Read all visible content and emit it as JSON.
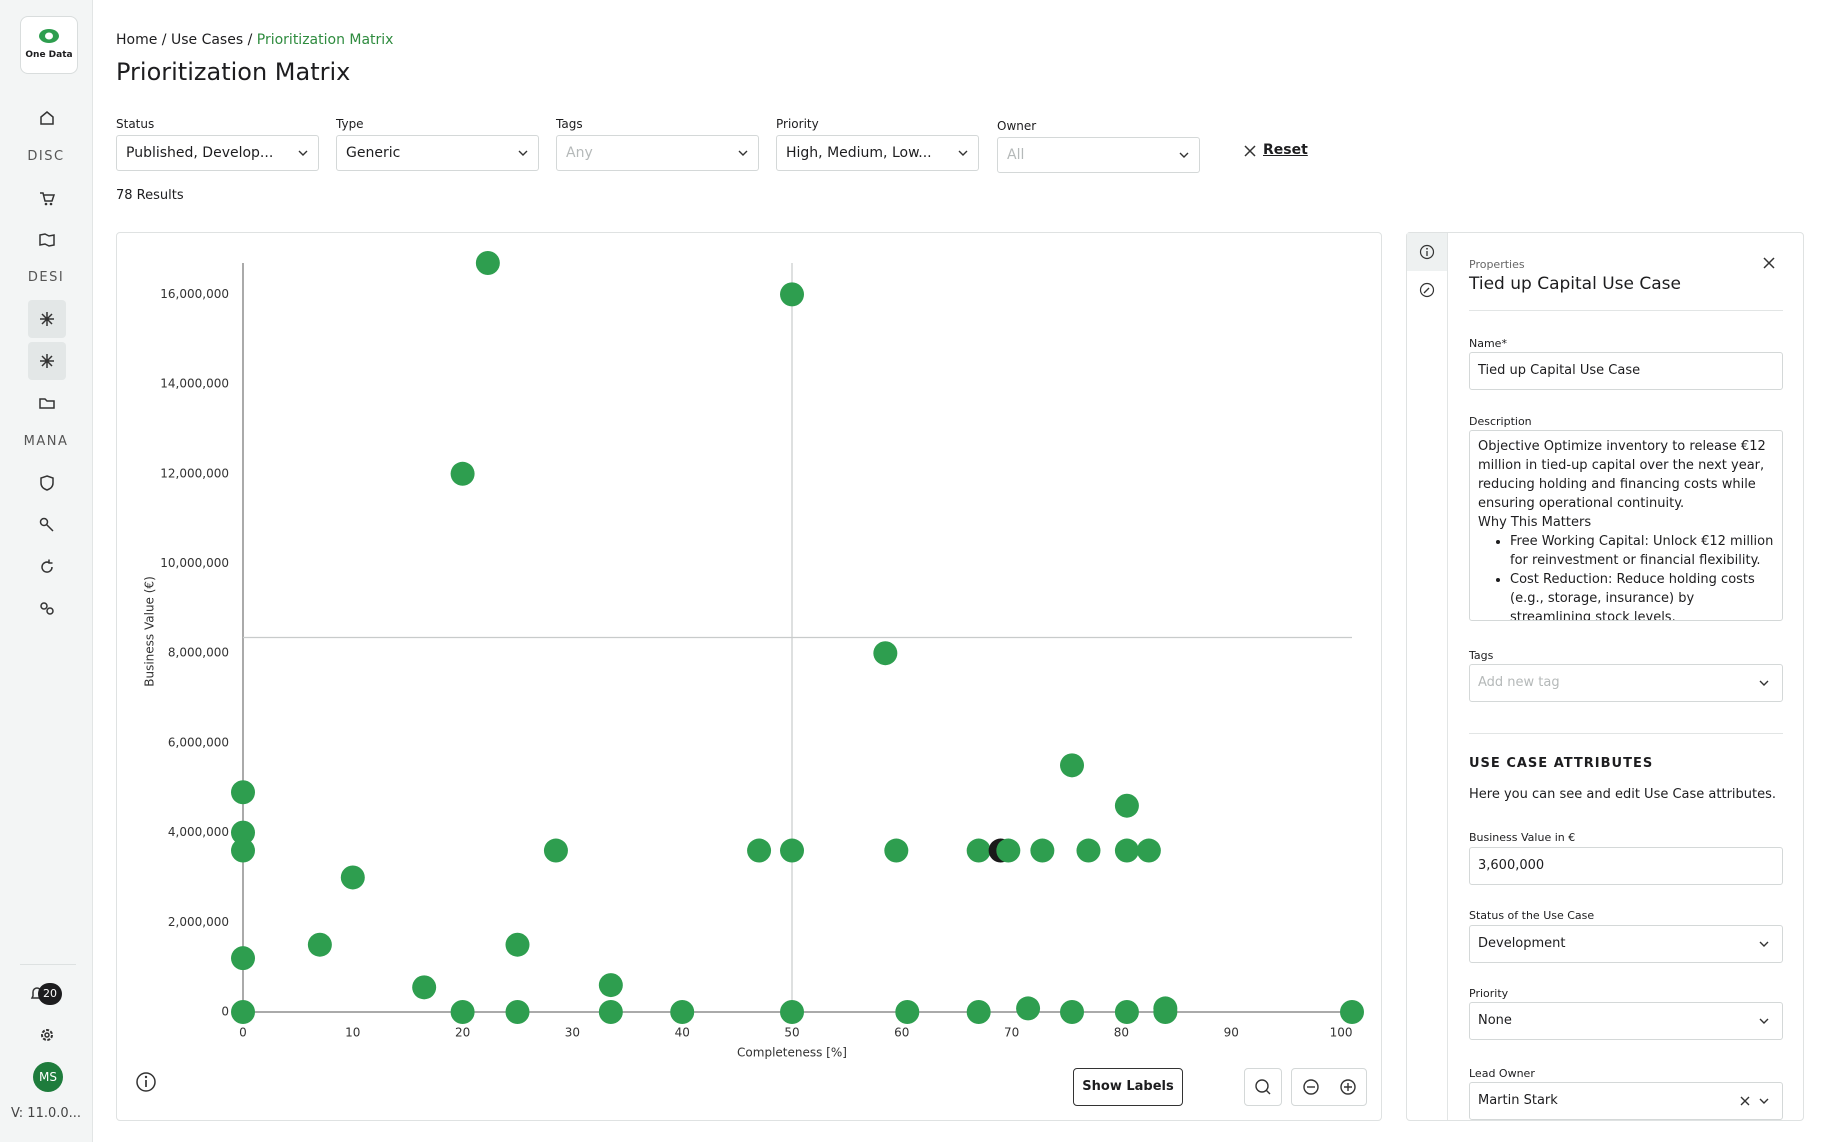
{
  "sidebar": {
    "logo": "One Data",
    "sections": [
      "DISC",
      "DESI",
      "MANA"
    ],
    "notifications": "20",
    "avatar": "MS",
    "version": "V: 11.0.0..."
  },
  "breadcrumb": {
    "items": [
      "Home",
      "Use Cases",
      "Prioritization Matrix"
    ],
    "separator": "/"
  },
  "title": "Prioritization Matrix",
  "filters": [
    {
      "label": "Status",
      "value": "Published, Develop..."
    },
    {
      "label": "Type",
      "value": "Generic"
    },
    {
      "label": "Tags",
      "placeholder": "Any"
    },
    {
      "label": "Priority",
      "value": "High, Medium, Low..."
    },
    {
      "label": "Owner",
      "placeholder": "All"
    }
  ],
  "reset": "Reset",
  "results": "78 Results",
  "chart_data": {
    "type": "scatter",
    "x_label": "Completeness [%]",
    "y_label": "Business Value (€)",
    "x": [
      22.3,
      50,
      20,
      58.5,
      75.5,
      80.5,
      0,
      0,
      0,
      10,
      7,
      25,
      0,
      16.5,
      33.5,
      28.5,
      47,
      50,
      59.5,
      67,
      69,
      69.7,
      72.8,
      77,
      80.5,
      82.5,
      0,
      20,
      25,
      33.5,
      40,
      50,
      60.5,
      67,
      71.5,
      75.5,
      80.5,
      84,
      84,
      101
    ],
    "values": [
      16700000,
      16000000,
      12000000,
      8000000,
      5500000,
      4600000,
      4900000,
      4000000,
      3600000,
      3000000,
      1500000,
      1500000,
      1200000,
      550000,
      600000,
      3600000,
      3600000,
      3600000,
      3600000,
      3600000,
      3600000,
      3600000,
      3600000,
      3600000,
      3600000,
      3600000,
      0,
      0,
      0,
      0,
      0,
      0,
      0,
      0,
      80000,
      0,
      0,
      80000,
      0,
      0
    ],
    "color": "#2e9e4f",
    "selected_color": "#1a1a1a",
    "selected": 20,
    "xlim": [
      0,
      101
    ],
    "ylim": [
      0,
      16700000
    ],
    "xticks": [
      0,
      10,
      20,
      30,
      40,
      50,
      60,
      70,
      80,
      90,
      100
    ],
    "yticks": [
      0,
      {
        "value": 2000000,
        "label": "2,000,000"
      },
      {
        "value": 4000000,
        "label": "4,000,000"
      },
      {
        "value": 6000000,
        "label": "6,000,000"
      },
      {
        "value": 8000000,
        "label": "8,000,000"
      },
      {
        "value": 10000000,
        "label": "10,000,000"
      },
      {
        "value": 12000000,
        "label": "12,000,000"
      },
      {
        "value": 14000000,
        "label": "14,000,000"
      },
      {
        "value": 16000000,
        "label": "16,000,000"
      }
    ],
    "reference_lines": {
      "x": 50,
      "y": 8350000
    },
    "grid": false
  },
  "chart_controls": {
    "show_labels": "Show Labels"
  },
  "panel": {
    "header": "Properties",
    "title": "Tied up Capital Use Case",
    "name_label": "Name*",
    "name": "Tied up Capital Use Case",
    "description_label": "Description",
    "description": {
      "objective": "Objective Optimize inventory to release €12 million in tied-up capital over the next year, reducing holding and financing costs while ensuring operational continuity.",
      "heading": "Why This Matters",
      "bullets": [
        "Free Working Capital: Unlock €12 million for reinvestment or financial flexibility.",
        "Cost Reduction: Reduce holding costs (e.g., storage, insurance) by streamlining stock levels."
      ]
    },
    "tags_label": "Tags",
    "tags_placeholder": "Add new tag",
    "attributes_heading": "USE CASE ATTRIBUTES",
    "attributes_text": "Here you can see and edit Use Case attributes.",
    "business_value_label": "Business Value in €",
    "business_value": "3,600,000",
    "status_label": "Status of the Use Case",
    "status": "Development",
    "priority_label": "Priority",
    "priority": "None",
    "owner_label": "Lead Owner",
    "owner": "Martin Stark"
  }
}
